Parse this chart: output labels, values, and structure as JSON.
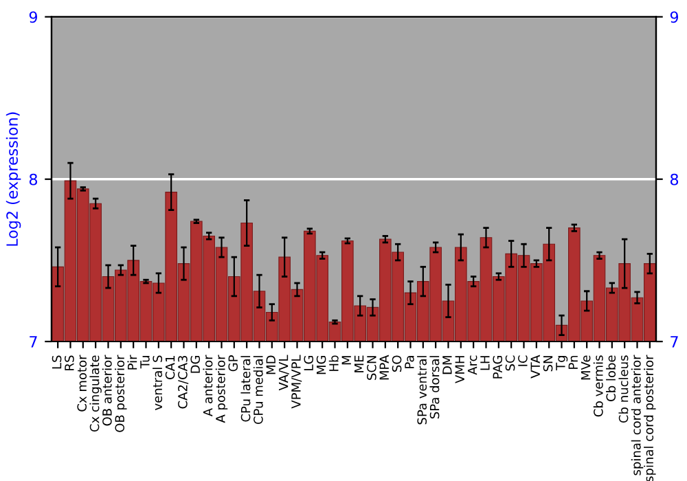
{
  "chart_data": {
    "type": "bar",
    "ylabel": "Log2 (expression)",
    "categories": [
      "LS",
      "RS",
      "Cx motor",
      "Cx cingulate",
      "OB anterior",
      "OB posterior",
      "Pir",
      "Tu",
      "ventral S",
      "CA1",
      "CA2/CA3",
      "DG",
      "A anterior",
      "A posterior",
      "GP",
      "CPu lateral",
      "CPu medial",
      "MD",
      "VA/VL",
      "VPM/VPL",
      "LG",
      "MG",
      "Hb",
      "M",
      "ME",
      "SCN",
      "MPA",
      "SO",
      "Pa",
      "SPa ventral",
      "SPa dorsal",
      "DM",
      "VMH",
      "Arc",
      "LH",
      "PAG",
      "SC",
      "IC",
      "VTA",
      "SN",
      "Tg",
      "Pn",
      "MVe",
      "Cb vermis",
      "Cb lobe",
      "Cb nucleus",
      "spinal cord anterior",
      "spinal cord posterior"
    ],
    "values": [
      7.46,
      7.99,
      7.94,
      7.85,
      7.4,
      7.44,
      7.5,
      7.37,
      7.36,
      7.92,
      7.48,
      7.74,
      7.65,
      7.58,
      7.4,
      7.73,
      7.31,
      7.18,
      7.52,
      7.32,
      7.68,
      7.53,
      7.12,
      7.62,
      7.22,
      7.21,
      7.63,
      7.55,
      7.3,
      7.37,
      7.58,
      7.25,
      7.58,
      7.37,
      7.64,
      7.4,
      7.54,
      7.53,
      7.48,
      7.6,
      7.1,
      7.7,
      7.25,
      7.53,
      7.33,
      7.48,
      7.27,
      7.48
    ],
    "errors": [
      0.12,
      0.11,
      0.01,
      0.03,
      0.07,
      0.03,
      0.09,
      0.01,
      0.06,
      0.11,
      0.1,
      0.01,
      0.02,
      0.06,
      0.12,
      0.14,
      0.1,
      0.05,
      0.12,
      0.04,
      0.015,
      0.02,
      0.01,
      0.015,
      0.06,
      0.05,
      0.02,
      0.05,
      0.07,
      0.09,
      0.03,
      0.1,
      0.08,
      0.03,
      0.06,
      0.02,
      0.08,
      0.07,
      0.02,
      0.1,
      0.06,
      0.02,
      0.06,
      0.02,
      0.03,
      0.15,
      0.035,
      0.06
    ],
    "color": "#b03030",
    "ylim": [
      7,
      9
    ],
    "yticks": [
      7,
      8,
      9
    ],
    "y2lim": [
      7,
      9
    ],
    "y2ticks": [
      7,
      8,
      9
    ],
    "grid": "y"
  }
}
